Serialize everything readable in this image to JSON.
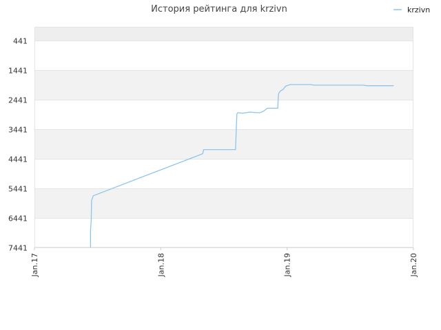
{
  "chart_data": {
    "type": "line",
    "title": "История рейтинга для krzivn",
    "xlabel": "",
    "ylabel": "",
    "y_inverted": true,
    "ylim": [
      441,
      7441
    ],
    "y_ticks": [
      441,
      1441,
      2441,
      3441,
      4441,
      5441,
      6441,
      7441
    ],
    "y_tick_labels": [
      "441",
      "1441",
      "2441",
      "3441",
      "4441",
      "5441",
      "6441",
      "7441"
    ],
    "x_ticks": [
      "2017-01-01",
      "2018-01-01",
      "2019-01-01",
      "2020-01-01"
    ],
    "x_tick_labels": [
      "Jan.17",
      "Jan.18",
      "Jan.19",
      "Jan.20"
    ],
    "xlim": [
      "2017-01-01",
      "2020-01-01"
    ],
    "grid": true,
    "legend_position": "top-right",
    "colors": {
      "line": "#8cc4ee",
      "band": "#f2f2f2",
      "band_top": "#eeeeee",
      "grid": "#e4e4e4"
    },
    "series": [
      {
        "name": "krzivn",
        "points": [
          [
            "2017-06-12",
            7441
          ],
          [
            "2017-06-12",
            6850
          ],
          [
            "2017-06-14",
            6500
          ],
          [
            "2017-06-15",
            5850
          ],
          [
            "2017-06-20",
            5690
          ],
          [
            "2018-05-02",
            4270
          ],
          [
            "2018-05-05",
            4130
          ],
          [
            "2018-08-05",
            4130
          ],
          [
            "2018-08-07",
            3500
          ],
          [
            "2018-08-09",
            2920
          ],
          [
            "2018-08-12",
            2880
          ],
          [
            "2018-08-25",
            2900
          ],
          [
            "2018-09-05",
            2880
          ],
          [
            "2018-09-15",
            2860
          ],
          [
            "2018-10-05",
            2880
          ],
          [
            "2018-10-15",
            2880
          ],
          [
            "2018-10-25",
            2830
          ],
          [
            "2018-11-05",
            2730
          ],
          [
            "2018-11-25",
            2730
          ],
          [
            "2018-12-05",
            2730
          ],
          [
            "2018-12-07",
            2250
          ],
          [
            "2018-12-12",
            2150
          ],
          [
            "2018-12-20",
            2100
          ],
          [
            "2018-12-28",
            1980
          ],
          [
            "2019-01-10",
            1930
          ],
          [
            "2019-03-10",
            1930
          ],
          [
            "2019-03-20",
            1950
          ],
          [
            "2019-08-10",
            1950
          ],
          [
            "2019-08-20",
            1970
          ],
          [
            "2019-11-05",
            1970
          ]
        ]
      }
    ]
  }
}
